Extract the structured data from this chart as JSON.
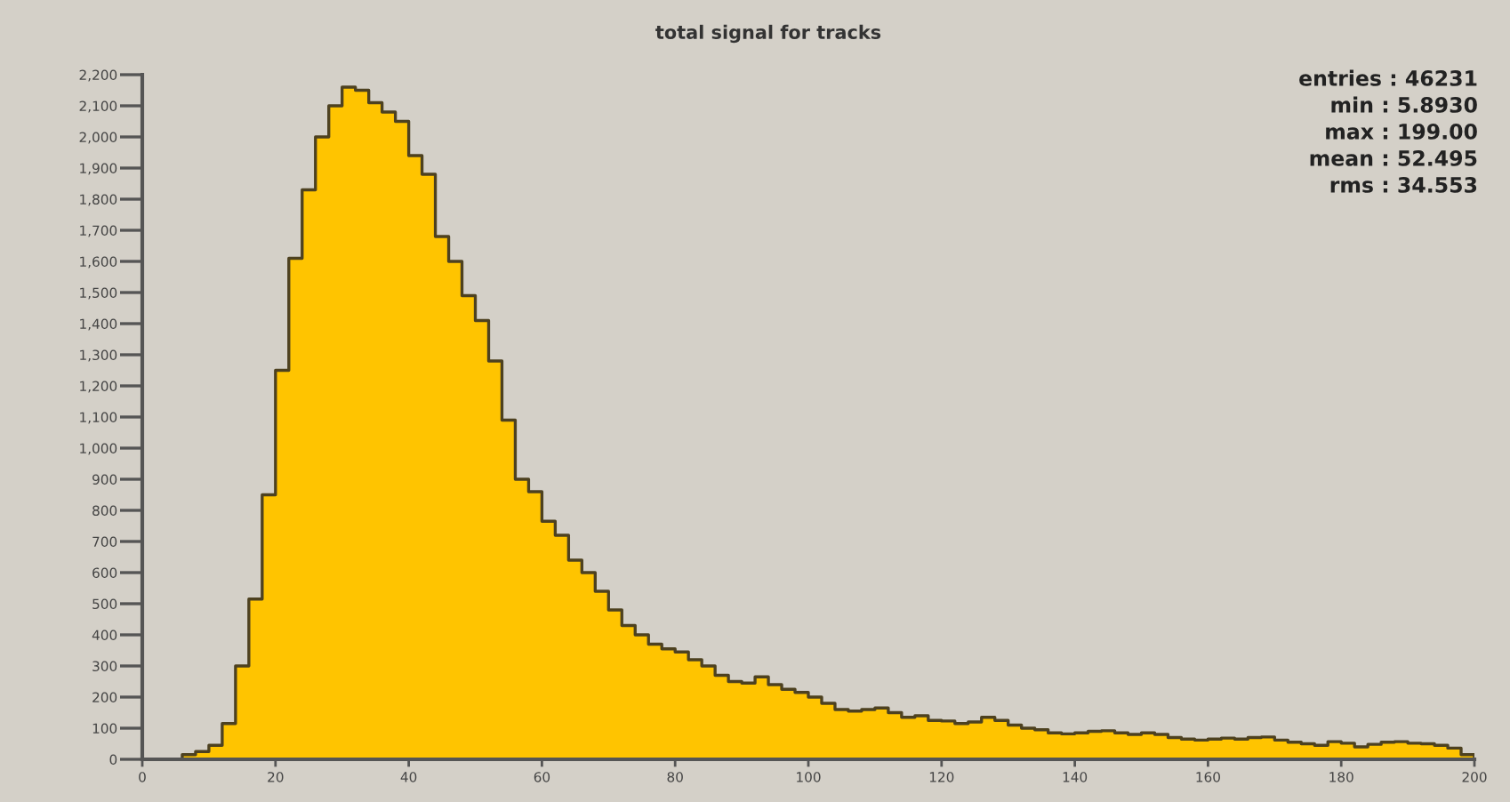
{
  "chart_data": {
    "type": "histogram",
    "title": "total signal for tracks",
    "bins": [
      0,
      2,
      4,
      6,
      8,
      10,
      12,
      14,
      16,
      18,
      20,
      22,
      24,
      26,
      28,
      30,
      32,
      34,
      36,
      38,
      40,
      42,
      44,
      46,
      48,
      50,
      52,
      54,
      56,
      58,
      60,
      62,
      64,
      66,
      68,
      70,
      72,
      74,
      76,
      78,
      80,
      82,
      84,
      86,
      88,
      90,
      92,
      94,
      96,
      98,
      100,
      102,
      104,
      106,
      108,
      110,
      112,
      114,
      116,
      118,
      120,
      122,
      124,
      126,
      128,
      130,
      132,
      134,
      136,
      138,
      140,
      142,
      144,
      146,
      148,
      150,
      152,
      154,
      156,
      158,
      160,
      162,
      164,
      166,
      168,
      170,
      172,
      174,
      176,
      178,
      180,
      182,
      184,
      186,
      188,
      190,
      192,
      194,
      196,
      198,
      200
    ],
    "values": [
      0,
      0,
      0,
      15,
      25,
      45,
      115,
      300,
      515,
      850,
      1250,
      1610,
      1830,
      2000,
      2100,
      2160,
      2150,
      2110,
      2080,
      2050,
      1940,
      1880,
      1680,
      1600,
      1490,
      1410,
      1280,
      1090,
      900,
      860,
      765,
      720,
      640,
      600,
      540,
      480,
      430,
      400,
      370,
      355,
      345,
      320,
      300,
      270,
      250,
      245,
      265,
      240,
      225,
      215,
      200,
      180,
      160,
      155,
      160,
      165,
      150,
      135,
      140,
      125,
      123,
      115,
      120,
      135,
      125,
      110,
      100,
      95,
      85,
      82,
      85,
      90,
      92,
      85,
      80,
      85,
      80,
      70,
      65,
      62,
      65,
      68,
      65,
      70,
      72,
      62,
      55,
      50,
      45,
      57,
      52,
      40,
      48,
      55,
      57,
      52,
      50,
      45,
      36,
      15
    ],
    "color": "#ffc400",
    "xlim": [
      0,
      200
    ],
    "xticks": [
      0,
      20,
      40,
      60,
      80,
      100,
      120,
      140,
      160,
      180,
      200
    ],
    "ylim": [
      0,
      2200
    ],
    "yticks": [
      0,
      100,
      200,
      300,
      400,
      500,
      600,
      700,
      800,
      900,
      {
        "value": 1000,
        "label": "1,000"
      },
      {
        "value": 1100,
        "label": "1,100"
      },
      {
        "value": 1200,
        "label": "1,200"
      },
      {
        "value": 1300,
        "label": "1,300"
      },
      {
        "value": 1400,
        "label": "1,400"
      },
      {
        "value": 1500,
        "label": "1,500"
      },
      {
        "value": 1600,
        "label": "1,600"
      },
      {
        "value": 1700,
        "label": "1,700"
      },
      {
        "value": 1800,
        "label": "1,800"
      },
      {
        "value": 1900,
        "label": "1,900"
      },
      {
        "value": 2000,
        "label": "2,000"
      },
      {
        "value": 2100,
        "label": "2,100"
      },
      {
        "value": 2200,
        "label": "2,200"
      }
    ],
    "annotations": [
      "entries : 46231",
      "min : 5.8930",
      "max : 199.00",
      "mean : 52.495",
      "rms : 34.553"
    ]
  }
}
